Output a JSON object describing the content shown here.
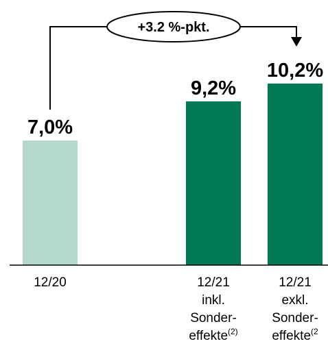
{
  "chart_data": {
    "type": "bar",
    "categories": [
      [
        "12/20"
      ],
      [
        "12/21",
        "inkl.",
        "Sonder-",
        "effekte"
      ],
      [
        "12/21",
        "exkl.",
        "Sonder-",
        "effekte"
      ]
    ],
    "category_superscripts": [
      "",
      "(2)",
      "(2"
    ],
    "values": [
      7.0,
      9.2,
      10.2
    ],
    "value_labels": [
      "7,0%",
      "9,2%",
      "10,2%"
    ],
    "unit": "%",
    "ylim": [
      0,
      10.2
    ],
    "colors": [
      "#b3d8cc",
      "#007a55",
      "#007a55"
    ],
    "annotation": {
      "text": "+3.2 %-pkt.",
      "from_category": 0,
      "to_category": 2
    },
    "grid": false,
    "legend": "none"
  }
}
